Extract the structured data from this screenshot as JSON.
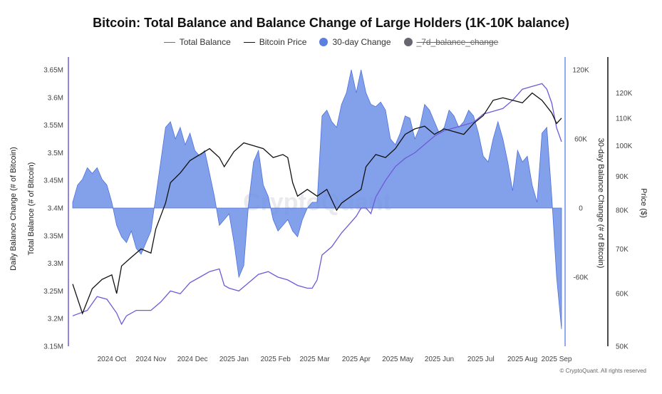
{
  "title": "Bitcoin: Total Balance and Balance Change of Large Holders (1K-10K balance)",
  "legend": [
    {
      "label": "Total Balance",
      "kind": "line",
      "color": "#6d5bd8",
      "active": true
    },
    {
      "label": "Bitcoin Price",
      "kind": "line",
      "color": "#111111",
      "active": true
    },
    {
      "label": "30-day Change",
      "kind": "dot",
      "color": "#5b7fe0",
      "active": true
    },
    {
      "label": "_7d_balance_change",
      "kind": "dot",
      "color": "#666670",
      "active": false
    }
  ],
  "watermark": "CryptoQuant",
  "copyright": "© CryptoQuant. All rights reserved",
  "colors": {
    "balance": "#6d5bd8",
    "price": "#111111",
    "change_fill": "#6d8fe6",
    "change_line": "#4f72da"
  },
  "chart_data": {
    "type": "line",
    "x_ticks": [
      "2024 Oct",
      "2024 Nov",
      "2024 Dec",
      "2025 Jan",
      "2025 Feb",
      "2025 Mar",
      "2025 Apr",
      "2025 May",
      "2025 Jun",
      "2025 Jul",
      "2025 Aug",
      "2025 Sep"
    ],
    "x_range": [
      0,
      1
    ],
    "axes": {
      "balance": {
        "label": "Total Balance (# of Bitcoin)",
        "range": [
          3150000,
          3650000
        ],
        "ticks": [
          "3.15M",
          "3.2M",
          "3.25M",
          "3.3M",
          "3.35M",
          "3.4M",
          "3.45M",
          "3.5M",
          "3.55M",
          "3.6M",
          "3.65M"
        ]
      },
      "left_outer_label": "Daily Balance Change (# of Bitcoin)",
      "change": {
        "label": "30-day Balance Change (# of Bitcoin)",
        "range": [
          -120000,
          120000
        ],
        "ticks": [
          "-60K",
          "0",
          "60K",
          "120K"
        ]
      },
      "price": {
        "label": "Price ($)",
        "scale": "log",
        "range": [
          50000,
          130000
        ],
        "ticks": [
          "50K",
          "60K",
          "70K",
          "80K",
          "90K",
          "100K",
          "110K",
          "120K"
        ]
      }
    },
    "series": [
      {
        "name": "Total Balance",
        "axis": "balance",
        "points": [
          [
            0.0,
            3205000
          ],
          [
            0.03,
            3215000
          ],
          [
            0.05,
            3240000
          ],
          [
            0.07,
            3235000
          ],
          [
            0.09,
            3210000
          ],
          [
            0.1,
            3190000
          ],
          [
            0.11,
            3205000
          ],
          [
            0.13,
            3215000
          ],
          [
            0.16,
            3215000
          ],
          [
            0.18,
            3230000
          ],
          [
            0.2,
            3250000
          ],
          [
            0.22,
            3245000
          ],
          [
            0.24,
            3265000
          ],
          [
            0.26,
            3275000
          ],
          [
            0.28,
            3285000
          ],
          [
            0.3,
            3290000
          ],
          [
            0.31,
            3260000
          ],
          [
            0.32,
            3255000
          ],
          [
            0.34,
            3250000
          ],
          [
            0.36,
            3265000
          ],
          [
            0.38,
            3280000
          ],
          [
            0.4,
            3285000
          ],
          [
            0.42,
            3275000
          ],
          [
            0.44,
            3270000
          ],
          [
            0.46,
            3260000
          ],
          [
            0.48,
            3255000
          ],
          [
            0.49,
            3255000
          ],
          [
            0.5,
            3270000
          ],
          [
            0.51,
            3315000
          ],
          [
            0.53,
            3330000
          ],
          [
            0.55,
            3355000
          ],
          [
            0.56,
            3365000
          ],
          [
            0.57,
            3375000
          ],
          [
            0.58,
            3385000
          ],
          [
            0.59,
            3400000
          ],
          [
            0.6,
            3400000
          ],
          [
            0.61,
            3390000
          ],
          [
            0.62,
            3420000
          ],
          [
            0.64,
            3450000
          ],
          [
            0.66,
            3475000
          ],
          [
            0.68,
            3490000
          ],
          [
            0.7,
            3500000
          ],
          [
            0.72,
            3515000
          ],
          [
            0.74,
            3530000
          ],
          [
            0.76,
            3540000
          ],
          [
            0.78,
            3545000
          ],
          [
            0.8,
            3550000
          ],
          [
            0.82,
            3555000
          ],
          [
            0.84,
            3570000
          ],
          [
            0.86,
            3575000
          ],
          [
            0.88,
            3580000
          ],
          [
            0.9,
            3595000
          ],
          [
            0.92,
            3615000
          ],
          [
            0.94,
            3620000
          ],
          [
            0.96,
            3625000
          ],
          [
            0.97,
            3615000
          ],
          [
            0.98,
            3590000
          ],
          [
            0.99,
            3545000
          ],
          [
            1.0,
            3520000
          ]
        ]
      },
      {
        "name": "Bitcoin Price",
        "axis": "price",
        "points": [
          [
            0.0,
            62000
          ],
          [
            0.02,
            56000
          ],
          [
            0.04,
            61000
          ],
          [
            0.06,
            63000
          ],
          [
            0.08,
            64000
          ],
          [
            0.09,
            60000
          ],
          [
            0.1,
            66000
          ],
          [
            0.12,
            68000
          ],
          [
            0.14,
            70000
          ],
          [
            0.16,
            69000
          ],
          [
            0.17,
            75000
          ],
          [
            0.19,
            82000
          ],
          [
            0.2,
            88000
          ],
          [
            0.22,
            91000
          ],
          [
            0.24,
            95000
          ],
          [
            0.26,
            97000
          ],
          [
            0.28,
            99000
          ],
          [
            0.3,
            96000
          ],
          [
            0.31,
            93000
          ],
          [
            0.33,
            98000
          ],
          [
            0.35,
            101000
          ],
          [
            0.37,
            100000
          ],
          [
            0.39,
            99000
          ],
          [
            0.41,
            96000
          ],
          [
            0.43,
            97000
          ],
          [
            0.44,
            96000
          ],
          [
            0.45,
            88000
          ],
          [
            0.46,
            84000
          ],
          [
            0.48,
            86000
          ],
          [
            0.5,
            84000
          ],
          [
            0.52,
            86000
          ],
          [
            0.54,
            80000
          ],
          [
            0.55,
            82000
          ],
          [
            0.57,
            84000
          ],
          [
            0.59,
            86000
          ],
          [
            0.6,
            93000
          ],
          [
            0.62,
            97000
          ],
          [
            0.64,
            96000
          ],
          [
            0.66,
            99000
          ],
          [
            0.68,
            104000
          ],
          [
            0.7,
            106000
          ],
          [
            0.72,
            107000
          ],
          [
            0.74,
            104000
          ],
          [
            0.76,
            106000
          ],
          [
            0.78,
            105000
          ],
          [
            0.8,
            104000
          ],
          [
            0.82,
            108000
          ],
          [
            0.84,
            111000
          ],
          [
            0.86,
            117000
          ],
          [
            0.88,
            118000
          ],
          [
            0.9,
            117000
          ],
          [
            0.92,
            116000
          ],
          [
            0.94,
            120000
          ],
          [
            0.96,
            117000
          ],
          [
            0.98,
            112000
          ],
          [
            0.99,
            108000
          ],
          [
            1.0,
            110000
          ]
        ]
      },
      {
        "name": "30-day Change",
        "axis": "change",
        "points": [
          [
            0.0,
            5000
          ],
          [
            0.01,
            20000
          ],
          [
            0.02,
            25000
          ],
          [
            0.03,
            35000
          ],
          [
            0.04,
            30000
          ],
          [
            0.05,
            35000
          ],
          [
            0.06,
            25000
          ],
          [
            0.07,
            20000
          ],
          [
            0.08,
            5000
          ],
          [
            0.09,
            -15000
          ],
          [
            0.1,
            -25000
          ],
          [
            0.11,
            -30000
          ],
          [
            0.12,
            -20000
          ],
          [
            0.13,
            -35000
          ],
          [
            0.14,
            -40000
          ],
          [
            0.15,
            -30000
          ],
          [
            0.16,
            -20000
          ],
          [
            0.17,
            10000
          ],
          [
            0.18,
            40000
          ],
          [
            0.19,
            70000
          ],
          [
            0.2,
            75000
          ],
          [
            0.21,
            60000
          ],
          [
            0.22,
            70000
          ],
          [
            0.23,
            55000
          ],
          [
            0.24,
            65000
          ],
          [
            0.25,
            50000
          ],
          [
            0.26,
            45000
          ],
          [
            0.27,
            50000
          ],
          [
            0.28,
            30000
          ],
          [
            0.29,
            10000
          ],
          [
            0.3,
            -15000
          ],
          [
            0.31,
            -10000
          ],
          [
            0.32,
            -5000
          ],
          [
            0.33,
            -30000
          ],
          [
            0.34,
            -60000
          ],
          [
            0.35,
            -50000
          ],
          [
            0.36,
            5000
          ],
          [
            0.37,
            40000
          ],
          [
            0.38,
            50000
          ],
          [
            0.39,
            20000
          ],
          [
            0.4,
            10000
          ],
          [
            0.41,
            -10000
          ],
          [
            0.42,
            -20000
          ],
          [
            0.43,
            -15000
          ],
          [
            0.44,
            -10000
          ],
          [
            0.45,
            -20000
          ],
          [
            0.46,
            -25000
          ],
          [
            0.47,
            -10000
          ],
          [
            0.48,
            0
          ],
          [
            0.49,
            5000
          ],
          [
            0.5,
            5000
          ],
          [
            0.51,
            80000
          ],
          [
            0.52,
            85000
          ],
          [
            0.53,
            75000
          ],
          [
            0.54,
            70000
          ],
          [
            0.55,
            90000
          ],
          [
            0.56,
            100000
          ],
          [
            0.57,
            120000
          ],
          [
            0.58,
            100000
          ],
          [
            0.59,
            120000
          ],
          [
            0.6,
            100000
          ],
          [
            0.61,
            90000
          ],
          [
            0.62,
            88000
          ],
          [
            0.63,
            92000
          ],
          [
            0.64,
            85000
          ],
          [
            0.65,
            60000
          ],
          [
            0.66,
            55000
          ],
          [
            0.67,
            65000
          ],
          [
            0.68,
            80000
          ],
          [
            0.69,
            78000
          ],
          [
            0.7,
            60000
          ],
          [
            0.71,
            70000
          ],
          [
            0.72,
            90000
          ],
          [
            0.73,
            85000
          ],
          [
            0.74,
            75000
          ],
          [
            0.75,
            65000
          ],
          [
            0.76,
            70000
          ],
          [
            0.77,
            85000
          ],
          [
            0.78,
            80000
          ],
          [
            0.79,
            70000
          ],
          [
            0.8,
            75000
          ],
          [
            0.81,
            85000
          ],
          [
            0.82,
            80000
          ],
          [
            0.83,
            65000
          ],
          [
            0.84,
            45000
          ],
          [
            0.85,
            40000
          ],
          [
            0.86,
            60000
          ],
          [
            0.87,
            75000
          ],
          [
            0.88,
            60000
          ],
          [
            0.89,
            40000
          ],
          [
            0.9,
            15000
          ],
          [
            0.91,
            50000
          ],
          [
            0.92,
            40000
          ],
          [
            0.93,
            45000
          ],
          [
            0.94,
            20000
          ],
          [
            0.95,
            5000
          ],
          [
            0.96,
            65000
          ],
          [
            0.97,
            70000
          ],
          [
            0.98,
            10000
          ],
          [
            0.99,
            -60000
          ],
          [
            1.0,
            -105000
          ]
        ]
      }
    ]
  }
}
